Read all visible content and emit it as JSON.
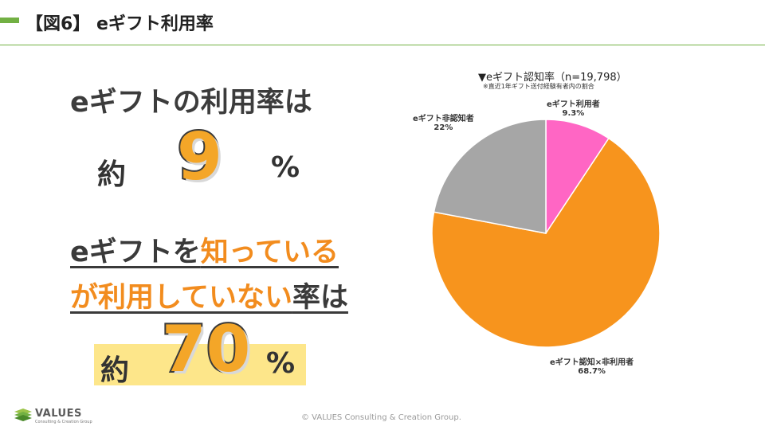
{
  "header": {
    "title": "【図6】 eギフト利用率"
  },
  "left": {
    "headline": "eギフトの利用率は",
    "prefix": "約",
    "usage_rate": "9",
    "percent": "%",
    "line2_dark": "eギフトを",
    "line2_orange": "知っている",
    "line3_orange": "が利用していない",
    "line3_dark": "率は",
    "prefix2": "約",
    "nonuse_rate": "70",
    "percent2": "%"
  },
  "colors": {
    "brand_green": "#72b043",
    "user": "#ff66c4",
    "aware_nonuser": "#f7941d",
    "unaware": "#a6a6a6",
    "highlight": "#fde68a"
  },
  "chart_data": {
    "type": "pie",
    "title": "▼eギフト認知率（n=19,798）",
    "subtitle": "※直近1年ギフト送付経験有者内の割合",
    "slices": [
      {
        "label": "eギフト利用者",
        "value": 9.3,
        "value_label": "9.3%",
        "color": "#ff66c4"
      },
      {
        "label": "eギフト認知×非利用者",
        "value": 68.7,
        "value_label": "68.7%",
        "color": "#f7941d"
      },
      {
        "label": "eギフト非認知者",
        "value": 22,
        "value_label": "22%",
        "color": "#a6a6a6"
      }
    ]
  },
  "footer": {
    "copyright": "© VALUES Consulting & Creation Group.",
    "logo_text": "VALUES",
    "logo_sub": "Consulting & Creation Group"
  }
}
